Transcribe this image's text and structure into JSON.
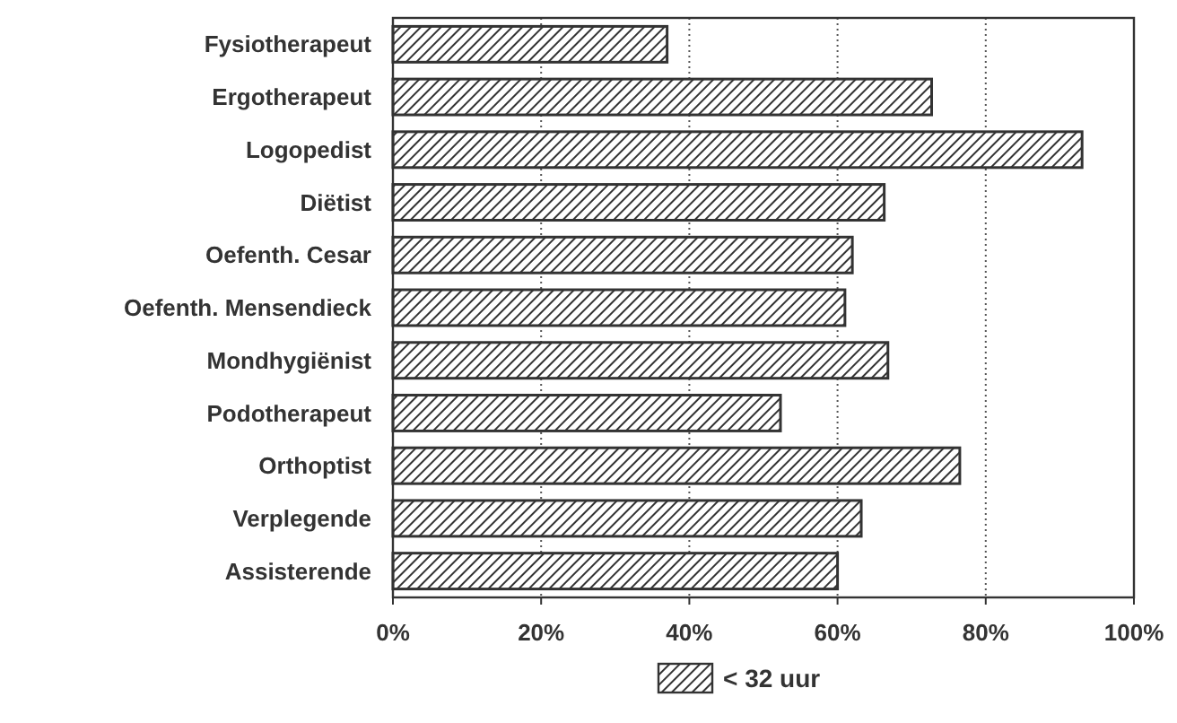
{
  "chart_data": {
    "type": "bar",
    "orientation": "horizontal",
    "categories": [
      "Fysiotherapeut",
      "Ergotherapeut",
      "Logopedist",
      "Diëtist",
      "Oefenth. Cesar",
      "Oefenth. Mensendieck",
      "Mondhygiënist",
      "Podotherapeut",
      "Orthoptist",
      "Verplegende",
      "Assisterende"
    ],
    "series": [
      {
        "name": "< 32 uur",
        "color": "#333333",
        "values": [
          37,
          72.7,
          93,
          66.3,
          62,
          61,
          66.8,
          52.3,
          76.5,
          63.2,
          60
        ]
      }
    ],
    "xlim": [
      0,
      100
    ],
    "xticks": [
      {
        "value": 0,
        "label": "0%"
      },
      {
        "value": 20,
        "label": "20%"
      },
      {
        "value": 40,
        "label": "40%"
      },
      {
        "value": 60,
        "label": "60%"
      },
      {
        "value": 80,
        "label": "80%"
      },
      {
        "value": 100,
        "label": "100%"
      }
    ],
    "grid": "x",
    "legend": "bottom"
  }
}
